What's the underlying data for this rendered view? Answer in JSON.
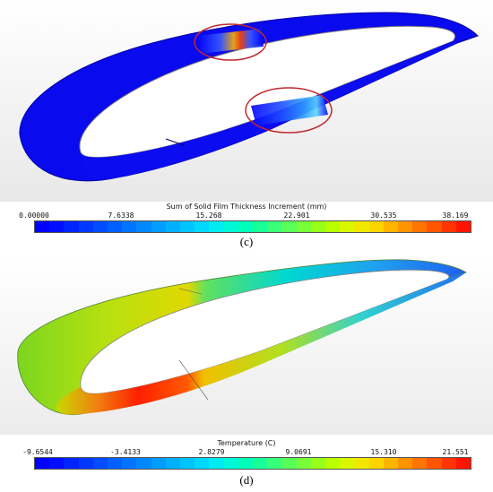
{
  "panel_c": {
    "legend_title": "Sum of Solid Film Thickness Increment (mm)",
    "ticks": [
      "0.00000",
      "7.6338",
      "15.268",
      "22.901",
      "30.535",
      "38.169"
    ],
    "caption": "(c)",
    "colormap": [
      "#0000ff",
      "#0010ff",
      "#0024ff",
      "#0038ff",
      "#004cff",
      "#0060ff",
      "#0074ff",
      "#0088ff",
      "#009cff",
      "#00b0ff",
      "#00c4ff",
      "#00d8ff",
      "#00ecf0",
      "#00f8d8",
      "#00ffb8",
      "#18ff98",
      "#38ff78",
      "#58ff58",
      "#78ff38",
      "#98ff18",
      "#b8ff00",
      "#d8f800",
      "#f0e800",
      "#ffd400",
      "#ffb400",
      "#ff9400",
      "#ff7400",
      "#ff5400",
      "#ff3400",
      "#ff1400"
    ]
  },
  "panel_d": {
    "legend_title": "Temperature (C)",
    "ticks": [
      "-9.6544",
      "-3.4133",
      "2.8279",
      "9.0691",
      "15.310",
      "21.551"
    ],
    "caption": "(d)",
    "colormap": [
      "#0000ff",
      "#0010ff",
      "#0024ff",
      "#0038ff",
      "#004cff",
      "#0060ff",
      "#0074ff",
      "#0088ff",
      "#009cff",
      "#00b0ff",
      "#00c4ff",
      "#00d8ff",
      "#00ecf0",
      "#00f8d8",
      "#00ffb8",
      "#18ff98",
      "#38ff78",
      "#58ff58",
      "#78ff38",
      "#98ff18",
      "#b8ff00",
      "#d8f800",
      "#f0e800",
      "#ffd400",
      "#ffb400",
      "#ff9400",
      "#ff7400",
      "#ff5400",
      "#ff3400",
      "#ff1400"
    ]
  }
}
